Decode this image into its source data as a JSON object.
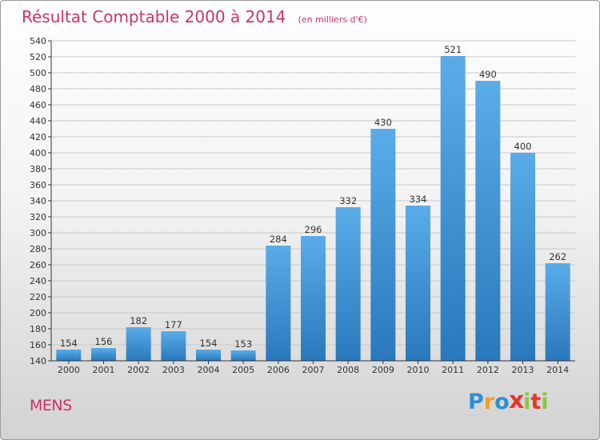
{
  "title": "Résultat Comptable 2000 à 2014",
  "unit": "(en milliers d'€)",
  "town": "MENS",
  "logo": {
    "letters": [
      {
        "char": "P",
        "color": "#2d8fd6"
      },
      {
        "char": "r",
        "color": "#f0a020"
      },
      {
        "char": "o",
        "color": "#2d8fd6"
      },
      {
        "char": "x",
        "color": "#e8342a"
      },
      {
        "char": "i",
        "color": "#8cc63e"
      },
      {
        "char": "t",
        "color": "#e8342a"
      },
      {
        "char": "i",
        "color": "#8cc63e"
      }
    ]
  },
  "colors": {
    "accent": "#cc3366",
    "bar_top": "#5aace9",
    "bar_bottom": "#2a78bc",
    "grid": "#c8c8c8",
    "axis": "#333333"
  },
  "chart_data": {
    "type": "bar",
    "title": "Résultat Comptable 2000 à 2014",
    "subtitle": "(en milliers d'€)",
    "xlabel": "",
    "ylabel": "",
    "categories": [
      "2000",
      "2001",
      "2002",
      "2003",
      "2004",
      "2005",
      "2006",
      "2007",
      "2008",
      "2009",
      "2010",
      "2011",
      "2012",
      "2013",
      "2014"
    ],
    "values": [
      154,
      156,
      182,
      177,
      154,
      153,
      284,
      296,
      332,
      430,
      334,
      521,
      490,
      400,
      262
    ],
    "ylim": [
      140,
      540
    ],
    "ytick_step": 20,
    "grid": true,
    "data_labels": true
  }
}
